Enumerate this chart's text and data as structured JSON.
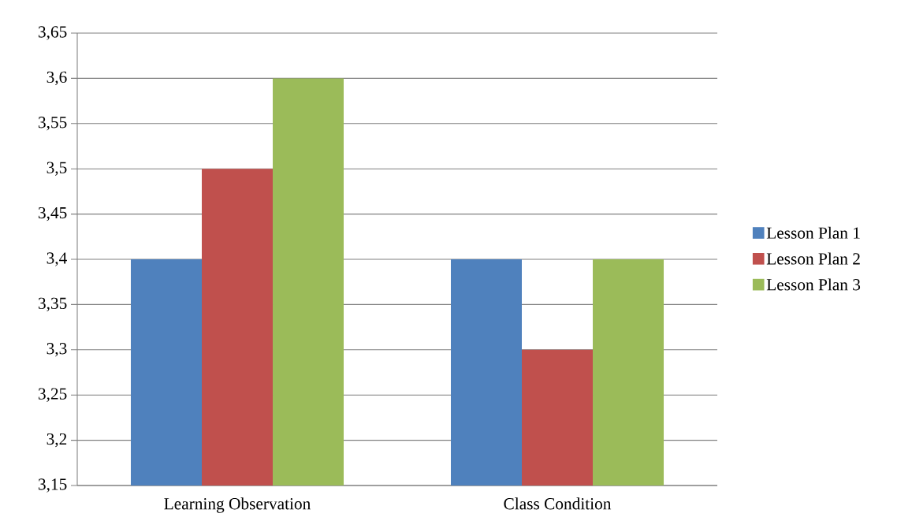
{
  "chart_data": {
    "type": "bar",
    "categories": [
      "Learning Observation",
      "Class Condition"
    ],
    "series": [
      {
        "name": "Lesson Plan 1",
        "color": "#4f81bd",
        "values": [
          3.4,
          3.4
        ]
      },
      {
        "name": "Lesson Plan 2",
        "color": "#c0504d",
        "values": [
          3.5,
          3.3
        ]
      },
      {
        "name": "Lesson Plan 3",
        "color": "#9bbb59",
        "values": [
          3.6,
          3.4
        ]
      }
    ],
    "ylim": [
      3.15,
      3.65
    ],
    "yticks": [
      {
        "value": 3.15,
        "label": "3,15"
      },
      {
        "value": 3.2,
        "label": "3,2"
      },
      {
        "value": 3.25,
        "label": "3,25"
      },
      {
        "value": 3.3,
        "label": "3,3"
      },
      {
        "value": 3.35,
        "label": "3,35"
      },
      {
        "value": 3.4,
        "label": "3,4"
      },
      {
        "value": 3.45,
        "label": "3,45"
      },
      {
        "value": 3.5,
        "label": "3,5"
      },
      {
        "value": 3.55,
        "label": "3,55"
      },
      {
        "value": 3.6,
        "label": "3,6"
      },
      {
        "value": 3.65,
        "label": "3,65"
      }
    ],
    "grid": "y",
    "legend": "right"
  }
}
